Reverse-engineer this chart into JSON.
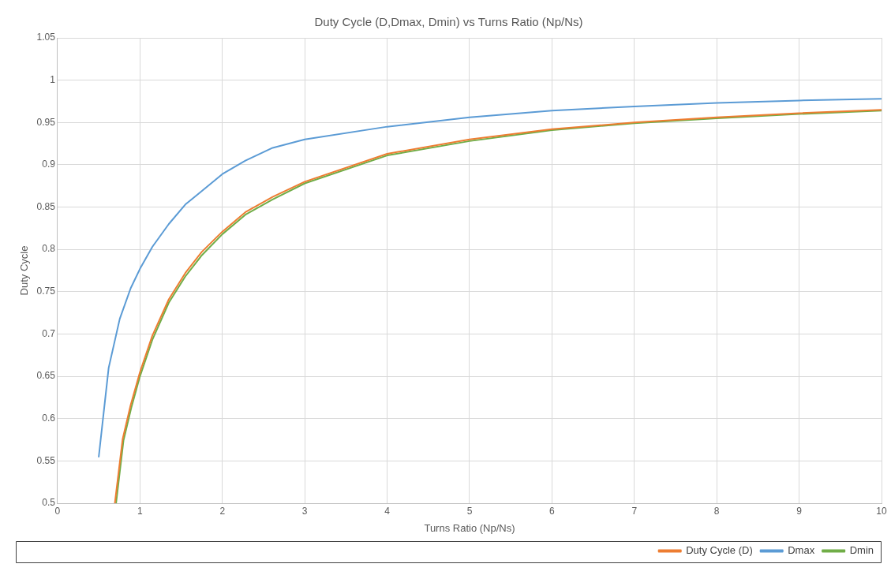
{
  "chart_data": {
    "type": "line",
    "title": "Duty Cycle (D,Dmax, Dmin) vs Turns Ratio (Np/Ns)",
    "xlabel": "Turns Ratio (Np/Ns)",
    "ylabel": "Duty Cycle",
    "xlim": [
      0,
      10
    ],
    "xticks": [
      0,
      1,
      2,
      3,
      4,
      5,
      6,
      7,
      8,
      9,
      10
    ],
    "ylim": [
      0.5,
      1.05
    ],
    "yticks": [
      0.5,
      0.55,
      0.6,
      0.65,
      0.7,
      0.75,
      0.8,
      0.85,
      0.9,
      0.95,
      1,
      1.05
    ],
    "grid": true,
    "legend": "bottom right",
    "marker": "none",
    "line_style": "solid",
    "series": [
      {
        "name": "Duty Cycle (D)",
        "color": "#ed7d31",
        "x": [
          0.695,
          0.79,
          0.887,
          1,
          1.15,
          1.35,
          1.55,
          1.75,
          2,
          2.28,
          2.61,
          3,
          4,
          5,
          6,
          7,
          8,
          9,
          10
        ],
        "values": [
          0.5,
          0.576,
          0.616,
          0.655,
          0.698,
          0.741,
          0.772,
          0.797,
          0.821,
          0.844,
          0.862,
          0.88,
          0.913,
          0.93,
          0.942,
          0.95,
          0.956,
          0.961,
          0.965
        ]
      },
      {
        "name": "Dmax",
        "color": "#5b9bd5",
        "x": [
          0.5,
          0.62,
          0.755,
          0.887,
          1,
          1.15,
          1.35,
          1.55,
          1.75,
          2,
          2.28,
          2.61,
          3,
          4,
          5,
          6,
          7,
          8,
          9,
          10
        ],
        "values": [
          0.555,
          0.66,
          0.718,
          0.754,
          0.777,
          0.803,
          0.83,
          0.853,
          0.869,
          0.889,
          0.905,
          0.92,
          0.93,
          0.945,
          0.956,
          0.964,
          0.969,
          0.973,
          0.976,
          0.978
        ]
      },
      {
        "name": "Dmin",
        "color": "#70ad47",
        "x": [
          0.71,
          0.8,
          0.895,
          1,
          1.15,
          1.35,
          1.55,
          1.75,
          2,
          2.28,
          2.61,
          3,
          4,
          5,
          6,
          7,
          8,
          9,
          10
        ],
        "values": [
          0.5,
          0.574,
          0.613,
          0.65,
          0.693,
          0.737,
          0.768,
          0.793,
          0.818,
          0.841,
          0.859,
          0.878,
          0.911,
          0.928,
          0.941,
          0.949,
          0.955,
          0.96,
          0.964
        ]
      }
    ]
  }
}
